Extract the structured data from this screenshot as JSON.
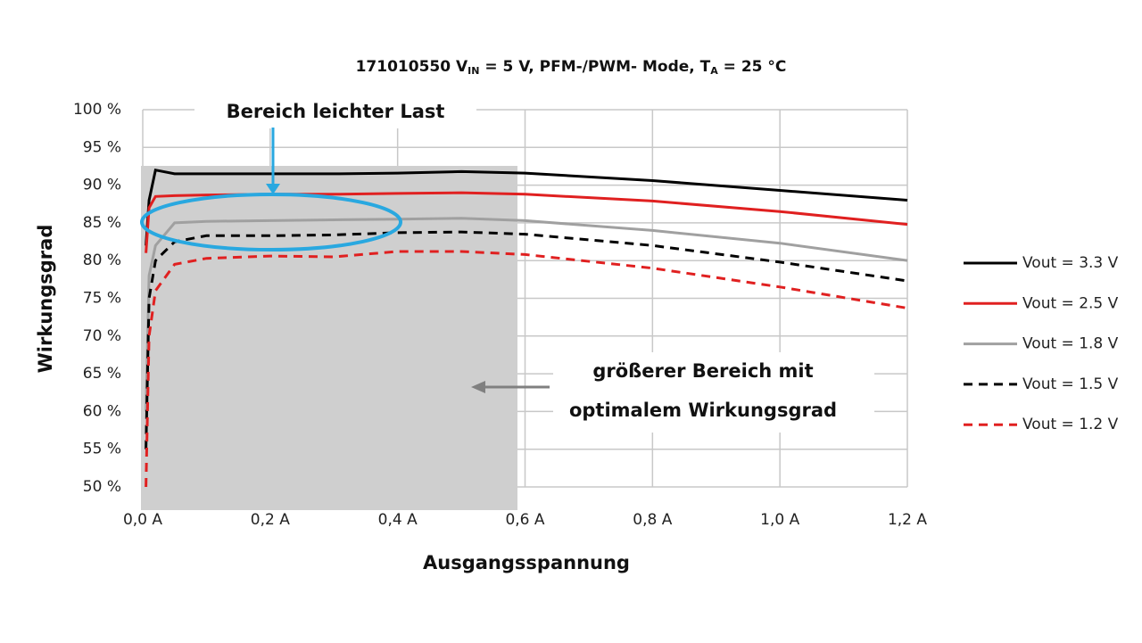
{
  "chart_data": {
    "type": "line",
    "title": [
      "171010550 V",
      "IN",
      " = 5 V, PFM-/PWM- Mode, T",
      "A",
      " = 25 °C"
    ],
    "x_label": "Ausgangsspannung",
    "y_label": "Wirkungsgrad",
    "annotations": [
      "Bereich leichter Last",
      "größerer Bereich mit",
      "optimalem Wirkungsgrad"
    ],
    "x": [
      0.005,
      0.01,
      0.02,
      0.05,
      0.1,
      0.2,
      0.3,
      0.4,
      0.5,
      0.6,
      0.8,
      1.0,
      1.2
    ],
    "series": [
      {
        "name": "Vout = 3.3 V",
        "color": "#000000",
        "dash": false,
        "values": [
          82,
          88,
          92,
          91.5,
          91.5,
          91.5,
          91.5,
          91.6,
          91.8,
          91.6,
          90.6,
          89.3,
          88
        ]
      },
      {
        "name": "Vout = 2.5 V",
        "color": "#e02020",
        "dash": false,
        "values": [
          81,
          87,
          88.5,
          88.6,
          88.7,
          88.8,
          88.8,
          88.9,
          89,
          88.8,
          87.9,
          86.5,
          84.8
        ]
      },
      {
        "name": "Vout = 1.8 V",
        "color": "#a0a0a0",
        "dash": false,
        "values": [
          60,
          78,
          82,
          85,
          85.2,
          85.3,
          85.4,
          85.5,
          85.6,
          85.3,
          84,
          82.3,
          80
        ]
      },
      {
        "name": "Vout = 1.5 V",
        "color": "#000000",
        "dash": true,
        "values": [
          55,
          75,
          80,
          82.5,
          83.3,
          83.3,
          83.4,
          83.7,
          83.8,
          83.5,
          82,
          79.8,
          77.3
        ]
      },
      {
        "name": "Vout = 1.2 V",
        "color": "#e02020",
        "dash": true,
        "values": [
          50,
          70,
          76,
          79.5,
          80.3,
          80.6,
          80.5,
          81.2,
          81.2,
          80.8,
          79,
          76.5,
          73.7
        ]
      }
    ],
    "xlim": [
      0,
      1.2
    ],
    "xticks": [
      {
        "value": 0,
        "label": "0,0 A"
      },
      {
        "value": 0.2,
        "label": "0,2 A"
      },
      {
        "value": 0.4,
        "label": "0,4 A"
      },
      {
        "value": 0.6,
        "label": "0,6 A"
      },
      {
        "value": 0.8,
        "label": "0,8 A"
      },
      {
        "value": 1.0,
        "label": "1,0 A"
      },
      {
        "value": 1.2,
        "label": "1,2 A"
      }
    ],
    "ylim": [
      50,
      100
    ],
    "yticks": [
      {
        "value": 50,
        "label": "50 %"
      },
      {
        "value": 55,
        "label": "55 %"
      },
      {
        "value": 60,
        "label": "60 %"
      },
      {
        "value": 65,
        "label": "65 %"
      },
      {
        "value": 70,
        "label": "70 %"
      },
      {
        "value": 75,
        "label": "75 %"
      },
      {
        "value": 80,
        "label": "80 %"
      },
      {
        "value": 85,
        "label": "85 %"
      },
      {
        "value": 90,
        "label": "90 %"
      },
      {
        "value": 95,
        "label": "95 %"
      },
      {
        "value": 100,
        "label": "100 %"
      }
    ],
    "grid": true,
    "legend": "right"
  }
}
